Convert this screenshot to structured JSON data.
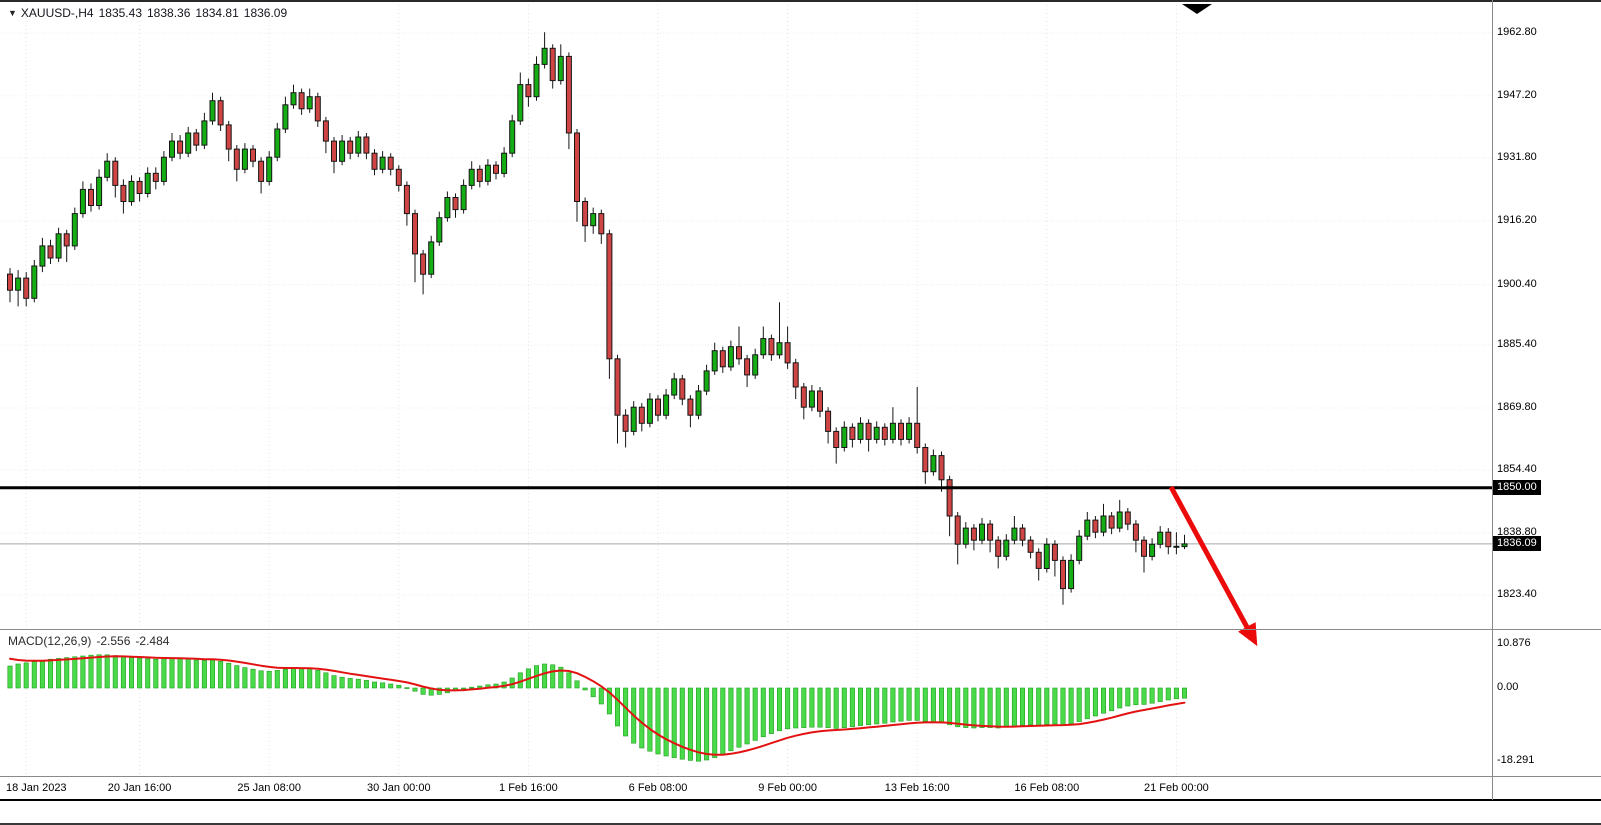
{
  "window": {
    "symbol_period": "XAUUSD-,H4",
    "open": "1835.43",
    "high": "1838.36",
    "low": "1834.81",
    "close": "1836.09"
  },
  "price_scale": {
    "labels": [
      {
        "text": "1962.80",
        "value": 1962.8
      },
      {
        "text": "1947.20",
        "value": 1947.2
      },
      {
        "text": "1931.80",
        "value": 1931.8
      },
      {
        "text": "1916.20",
        "value": 1916.2
      },
      {
        "text": "1900.40",
        "value": 1900.4
      },
      {
        "text": "1885.40",
        "value": 1885.4
      },
      {
        "text": "1869.80",
        "value": 1869.8
      },
      {
        "text": "1854.40",
        "value": 1854.4
      },
      {
        "text": "1838.80",
        "value": 1838.8
      },
      {
        "text": "1823.40",
        "value": 1823.4
      }
    ],
    "level_line": {
      "label": "1850.00",
      "value": 1850.0
    },
    "bid": {
      "label": "1836.09",
      "value": 1836.09
    }
  },
  "time_axis": {
    "labels": [
      {
        "text": "18 Jan 2023",
        "index": 2
      },
      {
        "text": "20 Jan 16:00",
        "index": 16
      },
      {
        "text": "25 Jan 08:00",
        "index": 32
      },
      {
        "text": "30 Jan 00:00",
        "index": 48
      },
      {
        "text": "1 Feb 16:00",
        "index": 64
      },
      {
        "text": "6 Feb 08:00",
        "index": 80
      },
      {
        "text": "9 Feb 00:00",
        "index": 96
      },
      {
        "text": "13 Feb 16:00",
        "index": 112
      },
      {
        "text": "16 Feb 08:00",
        "index": 128
      },
      {
        "text": "21 Feb 00:00",
        "index": 144
      }
    ]
  },
  "macd_panel": {
    "label": "MACD(12,26,9)",
    "value_main": "-2.556",
    "value_signal": "-2.484",
    "scale_labels": [
      {
        "text": "10.876",
        "value": 10.876
      },
      {
        "text": "0.00",
        "value": 0.0
      },
      {
        "text": "-18.291",
        "value": -18.291
      }
    ]
  },
  "colors": {
    "bull": "#14ad14",
    "bear": "#cf4545",
    "outline": "#161616",
    "hist_fill": "#49da49",
    "hist_edge": "#1f9e1f",
    "signal": "#e31212",
    "level_line": "#000000",
    "bid_line": "#a6a6a6",
    "grid": "#e2e2e2",
    "arrow": "#ec0b0b"
  },
  "chart_data": {
    "type": "candlestick",
    "title": "XAUUSD- H4 with MACD(12,26,9)",
    "symbol": "XAUUSD-",
    "timeframe": "H4",
    "legend_position": "none",
    "grid": "dotted",
    "y_axis": {
      "tick_values": [
        1962.8,
        1947.2,
        1931.8,
        1916.2,
        1900.4,
        1885.4,
        1869.8,
        1854.4,
        1838.8,
        1823.4
      ],
      "approx_range": [
        1818,
        1969
      ],
      "horizontal_level_line": 1850.0,
      "last_price": 1836.09
    },
    "x_axis_labels": [
      "18 Jan 2023",
      "20 Jan 16:00",
      "25 Jan 08:00",
      "30 Jan 00:00",
      "1 Feb 16:00",
      "6 Feb 08:00",
      "9 Feb 00:00",
      "13 Feb 16:00",
      "16 Feb 08:00",
      "21 Feb 00:00"
    ],
    "candles_ohlc": [
      [
        1903,
        1904.5,
        1896,
        1899
      ],
      [
        1899,
        1904,
        1895,
        1902
      ],
      [
        1902,
        1903.5,
        1895,
        1897
      ],
      [
        1897,
        1906.5,
        1896,
        1905
      ],
      [
        1905,
        1912,
        1903.5,
        1910
      ],
      [
        1910,
        1911.5,
        1905.5,
        1907
      ],
      [
        1907,
        1914.5,
        1906,
        1913
      ],
      [
        1913,
        1914,
        1906,
        1910
      ],
      [
        1910,
        1919.5,
        1909,
        1918
      ],
      [
        1918,
        1926,
        1917,
        1924
      ],
      [
        1924,
        1925.5,
        1918.5,
        1920
      ],
      [
        1920,
        1929,
        1919,
        1927
      ],
      [
        1927,
        1933,
        1926,
        1931
      ],
      [
        1931,
        1932,
        1922,
        1925
      ],
      [
        1925,
        1926.5,
        1918,
        1921
      ],
      [
        1921,
        1927.5,
        1920,
        1926
      ],
      [
        1926,
        1927,
        1921,
        1923
      ],
      [
        1923,
        1929.5,
        1922,
        1928
      ],
      [
        1928,
        1929.5,
        1924,
        1926
      ],
      [
        1926,
        1933.5,
        1925,
        1932
      ],
      [
        1932,
        1938,
        1931,
        1936
      ],
      [
        1936,
        1937.5,
        1931.5,
        1933
      ],
      [
        1933,
        1939.5,
        1932,
        1938
      ],
      [
        1938,
        1939,
        1933.5,
        1935
      ],
      [
        1935,
        1943,
        1934,
        1941
      ],
      [
        1941,
        1948,
        1940,
        1946
      ],
      [
        1946,
        1947,
        1938.5,
        1940
      ],
      [
        1940,
        1941,
        1931,
        1934
      ],
      [
        1934,
        1935,
        1926,
        1929
      ],
      [
        1929,
        1935.5,
        1928,
        1934
      ],
      [
        1934,
        1935,
        1929.5,
        1931
      ],
      [
        1931,
        1932,
        1923,
        1926
      ],
      [
        1926,
        1933.5,
        1925,
        1932
      ],
      [
        1932,
        1940.5,
        1931,
        1939
      ],
      [
        1939,
        1947,
        1938,
        1945
      ],
      [
        1945,
        1950,
        1944,
        1948
      ],
      [
        1948,
        1949,
        1942.5,
        1944
      ],
      [
        1944,
        1949,
        1943,
        1947
      ],
      [
        1947,
        1948,
        1939.5,
        1941
      ],
      [
        1941,
        1942,
        1933,
        1936
      ],
      [
        1936,
        1937,
        1928,
        1931
      ],
      [
        1931,
        1937.5,
        1930,
        1936
      ],
      [
        1936,
        1937,
        1931.5,
        1933
      ],
      [
        1933,
        1938.5,
        1932,
        1937
      ],
      [
        1937,
        1938,
        1931.5,
        1933
      ],
      [
        1933,
        1934,
        1927.5,
        1929
      ],
      [
        1929,
        1933.5,
        1928,
        1932
      ],
      [
        1932,
        1933,
        1927.5,
        1929
      ],
      [
        1929,
        1930,
        1923.5,
        1925
      ],
      [
        1925,
        1926,
        1915,
        1918
      ],
      [
        1918,
        1919,
        1901,
        1908
      ],
      [
        1908,
        1909,
        1898,
        1903
      ],
      [
        1903,
        1912.5,
        1902,
        1911
      ],
      [
        1911,
        1918.5,
        1910,
        1917
      ],
      [
        1917,
        1923.5,
        1916,
        1922
      ],
      [
        1922,
        1923,
        1917,
        1919
      ],
      [
        1919,
        1926.5,
        1918,
        1925
      ],
      [
        1925,
        1931,
        1924,
        1929
      ],
      [
        1929,
        1930,
        1924.5,
        1926
      ],
      [
        1926,
        1931.5,
        1925,
        1930
      ],
      [
        1930,
        1931,
        1926.5,
        1928
      ],
      [
        1928,
        1934.5,
        1927,
        1933
      ],
      [
        1933,
        1942.5,
        1932,
        1941
      ],
      [
        1941,
        1953,
        1940,
        1950
      ],
      [
        1950,
        1951.5,
        1944.5,
        1947
      ],
      [
        1947,
        1957,
        1946,
        1955
      ],
      [
        1955,
        1963,
        1954,
        1959
      ],
      [
        1959,
        1960,
        1949,
        1951
      ],
      [
        1951,
        1960,
        1950,
        1957
      ],
      [
        1957,
        1958,
        1934,
        1938
      ],
      [
        1938,
        1939,
        1916,
        1921
      ],
      [
        1921,
        1922,
        1911,
        1915
      ],
      [
        1915,
        1919.5,
        1913,
        1918
      ],
      [
        1918,
        1919,
        1910.5,
        1913
      ],
      [
        1913,
        1914,
        1877,
        1882
      ],
      [
        1882,
        1883,
        1861,
        1868
      ],
      [
        1868,
        1869.5,
        1860,
        1864
      ],
      [
        1864,
        1871.5,
        1863,
        1870
      ],
      [
        1870,
        1871,
        1864,
        1866
      ],
      [
        1866,
        1873.5,
        1865,
        1872
      ],
      [
        1872,
        1873,
        1866.5,
        1868
      ],
      [
        1868,
        1874.5,
        1867,
        1873
      ],
      [
        1873,
        1878.5,
        1872,
        1877
      ],
      [
        1877,
        1878,
        1870.5,
        1872
      ],
      [
        1872,
        1873,
        1865,
        1868
      ],
      [
        1868,
        1875.5,
        1867,
        1874
      ],
      [
        1874,
        1880.5,
        1873,
        1879
      ],
      [
        1879,
        1886,
        1878,
        1884
      ],
      [
        1884,
        1885,
        1878.5,
        1880
      ],
      [
        1880,
        1886.5,
        1879,
        1885
      ],
      [
        1885,
        1890,
        1880.5,
        1882
      ],
      [
        1882,
        1883,
        1875,
        1878
      ],
      [
        1878,
        1884.5,
        1877,
        1883
      ],
      [
        1883,
        1890,
        1882,
        1887
      ],
      [
        1887,
        1888,
        1881.5,
        1883
      ],
      [
        1883,
        1896,
        1882,
        1886
      ],
      [
        1886,
        1890,
        1879.5,
        1881
      ],
      [
        1881,
        1882,
        1872,
        1875
      ],
      [
        1875,
        1876,
        1867,
        1870
      ],
      [
        1870,
        1875.5,
        1869,
        1874
      ],
      [
        1874,
        1875,
        1867.5,
        1869
      ],
      [
        1869,
        1870,
        1861,
        1864
      ],
      [
        1864,
        1865,
        1856,
        1860
      ],
      [
        1860,
        1866.5,
        1859,
        1865
      ],
      [
        1865,
        1866,
        1860,
        1862
      ],
      [
        1862,
        1867.5,
        1861,
        1866
      ],
      [
        1866,
        1867,
        1859,
        1862
      ],
      [
        1862,
        1866.5,
        1861,
        1865
      ],
      [
        1865,
        1866,
        1860.5,
        1862
      ],
      [
        1862,
        1870,
        1861,
        1866
      ],
      [
        1866,
        1867,
        1860.5,
        1862
      ],
      [
        1862,
        1867.5,
        1861,
        1866
      ],
      [
        1866,
        1875,
        1858.5,
        1860
      ],
      [
        1860,
        1861,
        1851,
        1854
      ],
      [
        1854,
        1859.5,
        1853,
        1858
      ],
      [
        1858,
        1859,
        1849,
        1852
      ],
      [
        1852,
        1853,
        1838,
        1843
      ],
      [
        1843,
        1844,
        1831,
        1836
      ],
      [
        1836,
        1841.5,
        1835,
        1840
      ],
      [
        1840,
        1841,
        1834.5,
        1837
      ],
      [
        1837,
        1842.5,
        1836,
        1841
      ],
      [
        1841,
        1842,
        1834,
        1837
      ],
      [
        1837,
        1838,
        1830,
        1833
      ],
      [
        1833,
        1838.5,
        1832,
        1837
      ],
      [
        1837,
        1843,
        1836,
        1840
      ],
      [
        1840,
        1841,
        1835.5,
        1837
      ],
      [
        1837,
        1838,
        1832.5,
        1834
      ],
      [
        1834,
        1835,
        1827,
        1830
      ],
      [
        1830,
        1837.5,
        1829,
        1836
      ],
      [
        1836,
        1837,
        1828,
        1832
      ],
      [
        1832,
        1833,
        1821,
        1825
      ],
      [
        1825,
        1833.5,
        1824,
        1832
      ],
      [
        1832,
        1839.5,
        1831,
        1838
      ],
      [
        1838,
        1844,
        1837,
        1842
      ],
      [
        1842,
        1843,
        1837.5,
        1839
      ],
      [
        1839,
        1846,
        1838,
        1843
      ],
      [
        1843,
        1844,
        1838.5,
        1840
      ],
      [
        1840,
        1847,
        1839,
        1844
      ],
      [
        1844,
        1845,
        1839.5,
        1841
      ],
      [
        1841,
        1842,
        1834,
        1837
      ],
      [
        1837,
        1838,
        1829,
        1833
      ],
      [
        1833,
        1837.5,
        1832,
        1836
      ],
      [
        1836,
        1840.5,
        1835,
        1839
      ],
      [
        1839,
        1840,
        1833.5,
        1835.4
      ],
      [
        1835.4,
        1839,
        1833.5,
        1835.5
      ],
      [
        1835.43,
        1838.36,
        1834.81,
        1836.09
      ]
    ],
    "macd": {
      "label": "MACD(12,26,9)",
      "main_last": -2.556,
      "signal_last": -2.484,
      "scale_values": [
        10.876,
        0.0,
        -18.291
      ],
      "histogram": [
        5.5,
        6.0,
        6.3,
        6.6,
        6.9,
        7.2,
        7.4,
        7.6,
        7.8,
        8.0,
        8.2,
        8.3,
        8.3,
        8.1,
        7.8,
        7.6,
        7.4,
        7.3,
        7.2,
        7.3,
        7.4,
        7.3,
        7.2,
        7.0,
        6.9,
        7.0,
        6.7,
        6.2,
        5.6,
        5.1,
        4.7,
        4.3,
        4.2,
        4.4,
        4.7,
        5.0,
        4.9,
        4.8,
        4.4,
        3.8,
        3.1,
        2.7,
        2.4,
        2.2,
        1.9,
        1.5,
        1.3,
        1.0,
        0.7,
        0.1,
        -0.8,
        -1.6,
        -1.8,
        -1.6,
        -1.2,
        -0.6,
        -0.2,
        0.2,
        0.5,
        0.8,
        1.0,
        1.5,
        2.5,
        3.8,
        4.8,
        5.6,
        6.0,
        5.8,
        5.2,
        3.8,
        1.8,
        -0.5,
        -2.2,
        -4.0,
        -6.5,
        -9.5,
        -12.0,
        -13.8,
        -15.0,
        -15.8,
        -16.5,
        -17.0,
        -17.4,
        -17.8,
        -18.1,
        -18.3,
        -18.0,
        -17.4,
        -16.6,
        -15.7,
        -14.8,
        -14.0,
        -13.1,
        -12.2,
        -11.4,
        -10.7,
        -10.2,
        -10.0,
        -9.9,
        -9.8,
        -9.8,
        -9.9,
        -10.1,
        -9.9,
        -9.7,
        -9.4,
        -9.2,
        -9.0,
        -8.8,
        -8.5,
        -8.3,
        -8.1,
        -8.1,
        -8.3,
        -8.5,
        -8.7,
        -9.2,
        -9.7,
        -9.9,
        -10.0,
        -9.9,
        -9.9,
        -10.0,
        -9.8,
        -9.5,
        -9.3,
        -9.2,
        -9.3,
        -9.1,
        -9.0,
        -9.2,
        -8.9,
        -8.4,
        -7.7,
        -7.0,
        -6.3,
        -5.7,
        -5.0,
        -4.5,
        -4.2,
        -4.1,
        -3.8,
        -3.4,
        -3.0,
        -2.7,
        -2.556
      ]
    },
    "annotations": [
      {
        "type": "horizontal_line",
        "value": 1850.0,
        "style": "thick-black"
      },
      {
        "type": "arrow",
        "direction": "down-right",
        "color": "#ec0b0b"
      }
    ]
  }
}
